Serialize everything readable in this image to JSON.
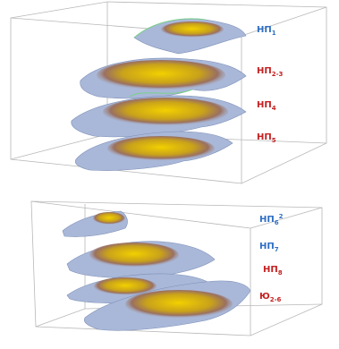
{
  "labels": [
    {
      "base": "НП",
      "sub": "1",
      "color": "#2f6fc4"
    },
    {
      "base": "НП",
      "sub": "2-3",
      "color": "#c42121"
    },
    {
      "base": "НП",
      "sub": "4",
      "color": "#c42121"
    },
    {
      "base": "НП",
      "sub": "5",
      "color": "#c42121"
    },
    {
      "base": "НП",
      "sub": "6",
      "sup": "2",
      "color": "#2f6fc4"
    },
    {
      "base": "НП",
      "sub": "7",
      "color": "#2f6fc4"
    },
    {
      "base": "НП",
      "sub": "8",
      "color": "#c42121"
    },
    {
      "base": "Ю",
      "sub": "2-6",
      "color": "#c42121"
    }
  ]
}
